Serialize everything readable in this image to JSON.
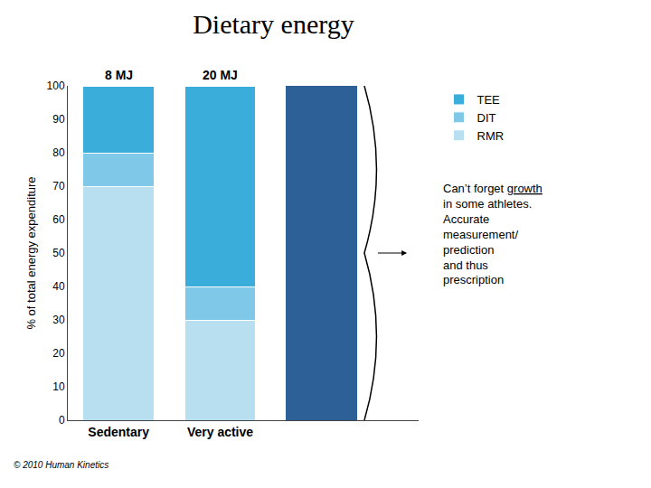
{
  "chart_data": {
    "type": "bar",
    "stacked": true,
    "title": "Dietary energy",
    "ylabel": "% of total energy expenditure",
    "categories": [
      "Sedentary",
      "Very active",
      null
    ],
    "series": [
      {
        "name": "RMR",
        "color": "#b8dff0",
        "values": [
          70,
          30,
          null
        ]
      },
      {
        "name": "DIT",
        "color": "#7fc8e8",
        "values": [
          10,
          10,
          null
        ]
      },
      {
        "name": "TEE",
        "color": "#3aadda",
        "values": [
          20,
          60,
          null
        ]
      },
      {
        "color": "#2d6096",
        "values": [
          null,
          null,
          100
        ]
      }
    ],
    "ylim": [
      0,
      100
    ],
    "yticks": [
      0,
      10,
      20,
      30,
      40,
      50,
      60,
      70,
      80,
      90,
      100
    ],
    "grid": false,
    "legend": "right",
    "annotations": [
      {
        "text": "8 MJ",
        "category": "Sedentary"
      },
      {
        "text": "20 MJ",
        "category": "Very active"
      }
    ],
    "note": [
      "Can’t forget growth",
      "in some athletes.",
      "Accurate",
      "measurement/",
      "prediction",
      "and thus",
      "prescription"
    ],
    "caption": "© 2010 Human Kinetics"
  }
}
